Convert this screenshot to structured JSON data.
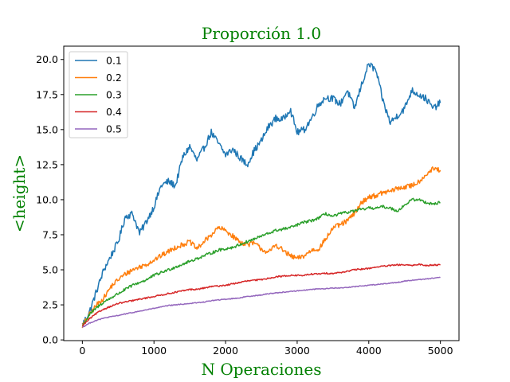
{
  "chart_data": {
    "type": "line",
    "title": "Proporción 1.0",
    "xlabel": "N Operaciones",
    "ylabel": "<height>",
    "label_color": "#008000",
    "xlim": [
      -260,
      5260
    ],
    "ylim": [
      -0.05,
      20.95
    ],
    "x_ticks": [
      0,
      1000,
      2000,
      3000,
      4000,
      5000
    ],
    "x_tick_labels": [
      "0",
      "1000",
      "2000",
      "3000",
      "4000",
      "5000"
    ],
    "y_ticks": [
      0.0,
      2.5,
      5.0,
      7.5,
      10.0,
      12.5,
      15.0,
      17.5,
      20.0
    ],
    "y_tick_labels": [
      "0.0",
      "2.5",
      "5.0",
      "7.5",
      "10.0",
      "12.5",
      "15.0",
      "17.5",
      "20.0"
    ],
    "grid": false,
    "legend_position": "top-left",
    "series": [
      {
        "name": "0.1",
        "color": "#1f77b4",
        "x": [
          0,
          100,
          200,
          300,
          400,
          500,
          600,
          700,
          800,
          900,
          1000,
          1100,
          1200,
          1300,
          1400,
          1500,
          1600,
          1700,
          1800,
          1900,
          2000,
          2100,
          2200,
          2300,
          2400,
          2500,
          2600,
          2700,
          2800,
          2900,
          3000,
          3100,
          3200,
          3300,
          3400,
          3500,
          3600,
          3700,
          3800,
          3900,
          4000,
          4100,
          4200,
          4300,
          4400,
          4500,
          4600,
          4700,
          4800,
          4900,
          5000
        ],
        "values": [
          1.1,
          2.0,
          3.5,
          5.0,
          6.0,
          7.0,
          8.8,
          9.0,
          7.6,
          8.5,
          9.5,
          11.0,
          11.3,
          11.0,
          13.0,
          13.8,
          12.8,
          13.7,
          14.8,
          14.0,
          13.2,
          13.6,
          13.0,
          12.5,
          13.5,
          14.2,
          15.2,
          15.8,
          15.7,
          16.5,
          14.8,
          15.0,
          15.8,
          16.8,
          17.3,
          17.2,
          16.8,
          17.8,
          16.5,
          18.2,
          19.7,
          19.2,
          17.0,
          15.5,
          16.0,
          16.5,
          17.8,
          17.5,
          17.2,
          16.5,
          16.9
        ],
        "noise": 0.25
      },
      {
        "name": "0.2",
        "color": "#ff7f0e",
        "x": [
          0,
          100,
          200,
          300,
          400,
          500,
          600,
          700,
          800,
          900,
          1000,
          1100,
          1200,
          1300,
          1400,
          1500,
          1600,
          1700,
          1800,
          1900,
          2000,
          2100,
          2200,
          2300,
          2400,
          2500,
          2600,
          2700,
          2800,
          2900,
          3000,
          3100,
          3200,
          3300,
          3400,
          3500,
          3600,
          3700,
          3800,
          3900,
          4000,
          4100,
          4200,
          4300,
          4400,
          4500,
          4600,
          4700,
          4800,
          4900,
          5000
        ],
        "values": [
          1.0,
          1.8,
          2.5,
          3.0,
          3.8,
          4.3,
          4.7,
          5.0,
          5.2,
          5.4,
          5.7,
          6.0,
          6.3,
          6.6,
          6.8,
          7.0,
          6.5,
          7.0,
          7.5,
          8.0,
          7.8,
          7.4,
          7.0,
          6.8,
          6.9,
          6.5,
          6.2,
          6.8,
          6.4,
          6.0,
          5.8,
          6.0,
          6.4,
          6.5,
          7.2,
          8.0,
          8.2,
          8.5,
          9.0,
          9.8,
          10.2,
          10.3,
          10.5,
          10.6,
          10.8,
          10.9,
          11.0,
          11.3,
          11.8,
          12.2,
          12.1
        ],
        "noise": 0.18
      },
      {
        "name": "0.3",
        "color": "#2ca02c",
        "x": [
          0,
          100,
          200,
          300,
          400,
          500,
          600,
          700,
          800,
          900,
          1000,
          1100,
          1200,
          1300,
          1400,
          1500,
          1600,
          1700,
          1800,
          1900,
          2000,
          2100,
          2200,
          2300,
          2400,
          2500,
          2600,
          2700,
          2800,
          2900,
          3000,
          3100,
          3200,
          3300,
          3400,
          3500,
          3600,
          3700,
          3800,
          3900,
          4000,
          4100,
          4200,
          4300,
          4400,
          4500,
          4600,
          4700,
          4800,
          4900,
          5000
        ],
        "values": [
          1.0,
          1.8,
          2.3,
          2.7,
          3.0,
          3.3,
          3.6,
          3.9,
          4.1,
          4.3,
          4.6,
          4.8,
          5.0,
          5.2,
          5.4,
          5.6,
          5.8,
          6.0,
          6.2,
          6.4,
          6.5,
          6.6,
          6.8,
          7.0,
          7.2,
          7.4,
          7.6,
          7.8,
          7.9,
          8.0,
          8.2,
          8.4,
          8.5,
          8.7,
          9.0,
          8.8,
          9.0,
          9.1,
          9.2,
          9.3,
          9.4,
          9.4,
          9.5,
          9.4,
          9.2,
          9.6,
          10.0,
          10.0,
          9.8,
          9.7,
          9.8
        ],
        "noise": 0.1
      },
      {
        "name": "0.4",
        "color": "#d62728",
        "x": [
          0,
          100,
          200,
          300,
          400,
          500,
          600,
          700,
          800,
          900,
          1000,
          1100,
          1200,
          1300,
          1400,
          1500,
          1600,
          1700,
          1800,
          1900,
          2000,
          2100,
          2200,
          2300,
          2400,
          2500,
          2600,
          2700,
          2800,
          2900,
          3000,
          3100,
          3200,
          3300,
          3400,
          3500,
          3600,
          3700,
          3800,
          3900,
          4000,
          4100,
          4200,
          4300,
          4400,
          4500,
          4600,
          4700,
          4800,
          4900,
          5000
        ],
        "values": [
          1.0,
          1.5,
          1.9,
          2.2,
          2.4,
          2.6,
          2.7,
          2.8,
          2.9,
          3.0,
          3.1,
          3.2,
          3.3,
          3.4,
          3.5,
          3.6,
          3.6,
          3.7,
          3.8,
          3.85,
          3.9,
          4.0,
          4.1,
          4.2,
          4.25,
          4.3,
          4.4,
          4.5,
          4.55,
          4.6,
          4.6,
          4.6,
          4.7,
          4.7,
          4.75,
          4.75,
          4.8,
          4.9,
          5.0,
          5.05,
          5.1,
          5.2,
          5.25,
          5.3,
          5.35,
          5.35,
          5.3,
          5.4,
          5.3,
          5.35,
          5.35
        ],
        "noise": 0.05
      },
      {
        "name": "0.5",
        "color": "#9467bd",
        "x": [
          0,
          100,
          200,
          300,
          400,
          500,
          600,
          700,
          800,
          900,
          1000,
          1100,
          1200,
          1300,
          1400,
          1500,
          1600,
          1700,
          1800,
          1900,
          2000,
          2100,
          2200,
          2300,
          2400,
          2500,
          2600,
          2700,
          2800,
          2900,
          3000,
          3100,
          3200,
          3300,
          3400,
          3500,
          3600,
          3700,
          3800,
          3900,
          4000,
          4100,
          4200,
          4300,
          4400,
          4500,
          4600,
          4700,
          4800,
          4900,
          5000
        ],
        "values": [
          0.9,
          1.2,
          1.4,
          1.55,
          1.65,
          1.75,
          1.85,
          1.95,
          2.05,
          2.15,
          2.25,
          2.35,
          2.45,
          2.5,
          2.55,
          2.6,
          2.65,
          2.7,
          2.8,
          2.85,
          2.9,
          2.95,
          3.0,
          3.1,
          3.15,
          3.2,
          3.3,
          3.35,
          3.4,
          3.45,
          3.5,
          3.55,
          3.6,
          3.65,
          3.65,
          3.7,
          3.7,
          3.75,
          3.8,
          3.85,
          3.9,
          3.95,
          4.0,
          4.05,
          4.1,
          4.2,
          4.25,
          4.3,
          4.35,
          4.4,
          4.45
        ],
        "noise": 0.03
      }
    ]
  }
}
